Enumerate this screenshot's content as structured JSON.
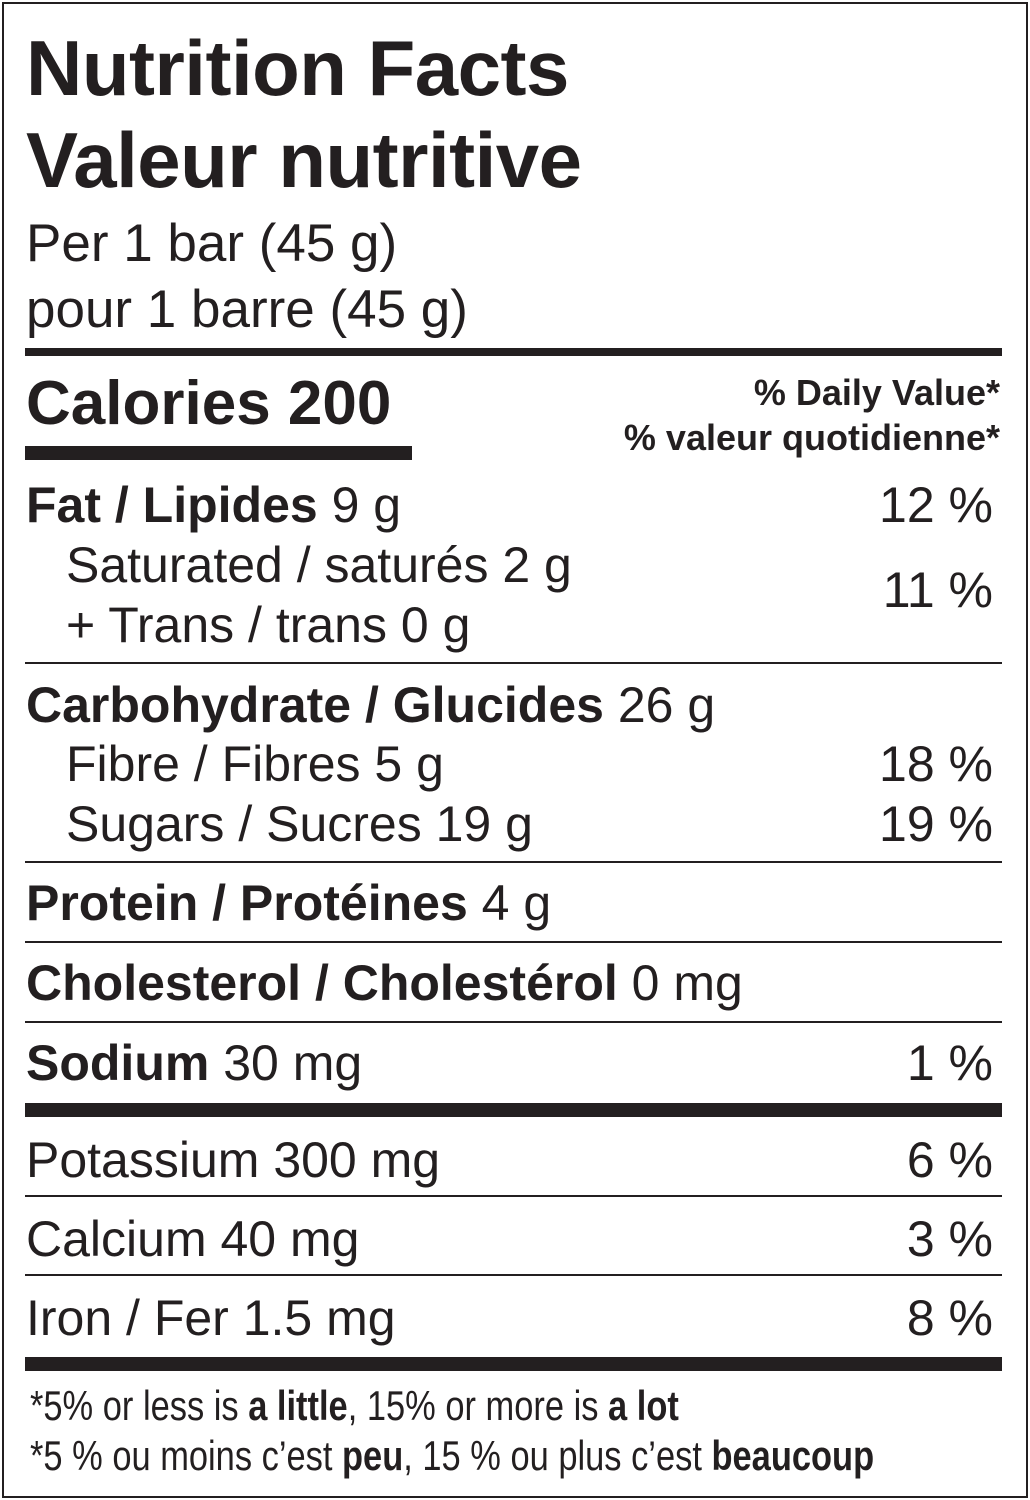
{
  "title_en": "Nutrition Facts",
  "title_fr": "Valeur nutritive",
  "serving_en": "Per 1 bar (45 g)",
  "serving_fr": "pour 1 barre (45 g)",
  "calories_label": "Calories 200",
  "dv_en": "% Daily Value*",
  "dv_fr": "% valeur quotidienne*",
  "rows": {
    "fat": {
      "label": "Fat / Lipides",
      "amount": " 9 g",
      "dv": "12 %"
    },
    "saturated": {
      "label": "Saturated / saturés 2 g"
    },
    "trans": {
      "label": "+ Trans / trans 0 g"
    },
    "sat_trans_dv": "11 %",
    "carb": {
      "label": "Carbohydrate / Glucides",
      "amount": " 26 g"
    },
    "fibre": {
      "label": "Fibre / Fibres 5 g",
      "dv": "18 %"
    },
    "sugars": {
      "label": "Sugars / Sucres 19 g",
      "dv": "19 %"
    },
    "protein": {
      "label": "Protein / Protéines",
      "amount": " 4 g"
    },
    "cholesterol": {
      "label": "Cholesterol / Cholestérol",
      "amount": " 0 mg"
    },
    "sodium": {
      "label": "Sodium",
      "amount": " 30 mg",
      "dv": "1 %"
    },
    "potassium": {
      "label": "Potassium 300 mg",
      "dv": "6 %"
    },
    "calcium": {
      "label": "Calcium 40 mg",
      "dv": "3 %"
    },
    "iron": {
      "label": "Iron / Fer 1.5 mg",
      "dv": "8 %"
    }
  },
  "footnote_en": {
    "p1": "*5% or less is ",
    "b1": "a little",
    "p2": ", 15% or more is ",
    "b2": "a lot"
  },
  "footnote_fr": {
    "p1": "*5 % ou moins c’est ",
    "b1": "peu",
    "p2": ", 15 % ou plus c’est ",
    "b2": "beaucoup"
  }
}
